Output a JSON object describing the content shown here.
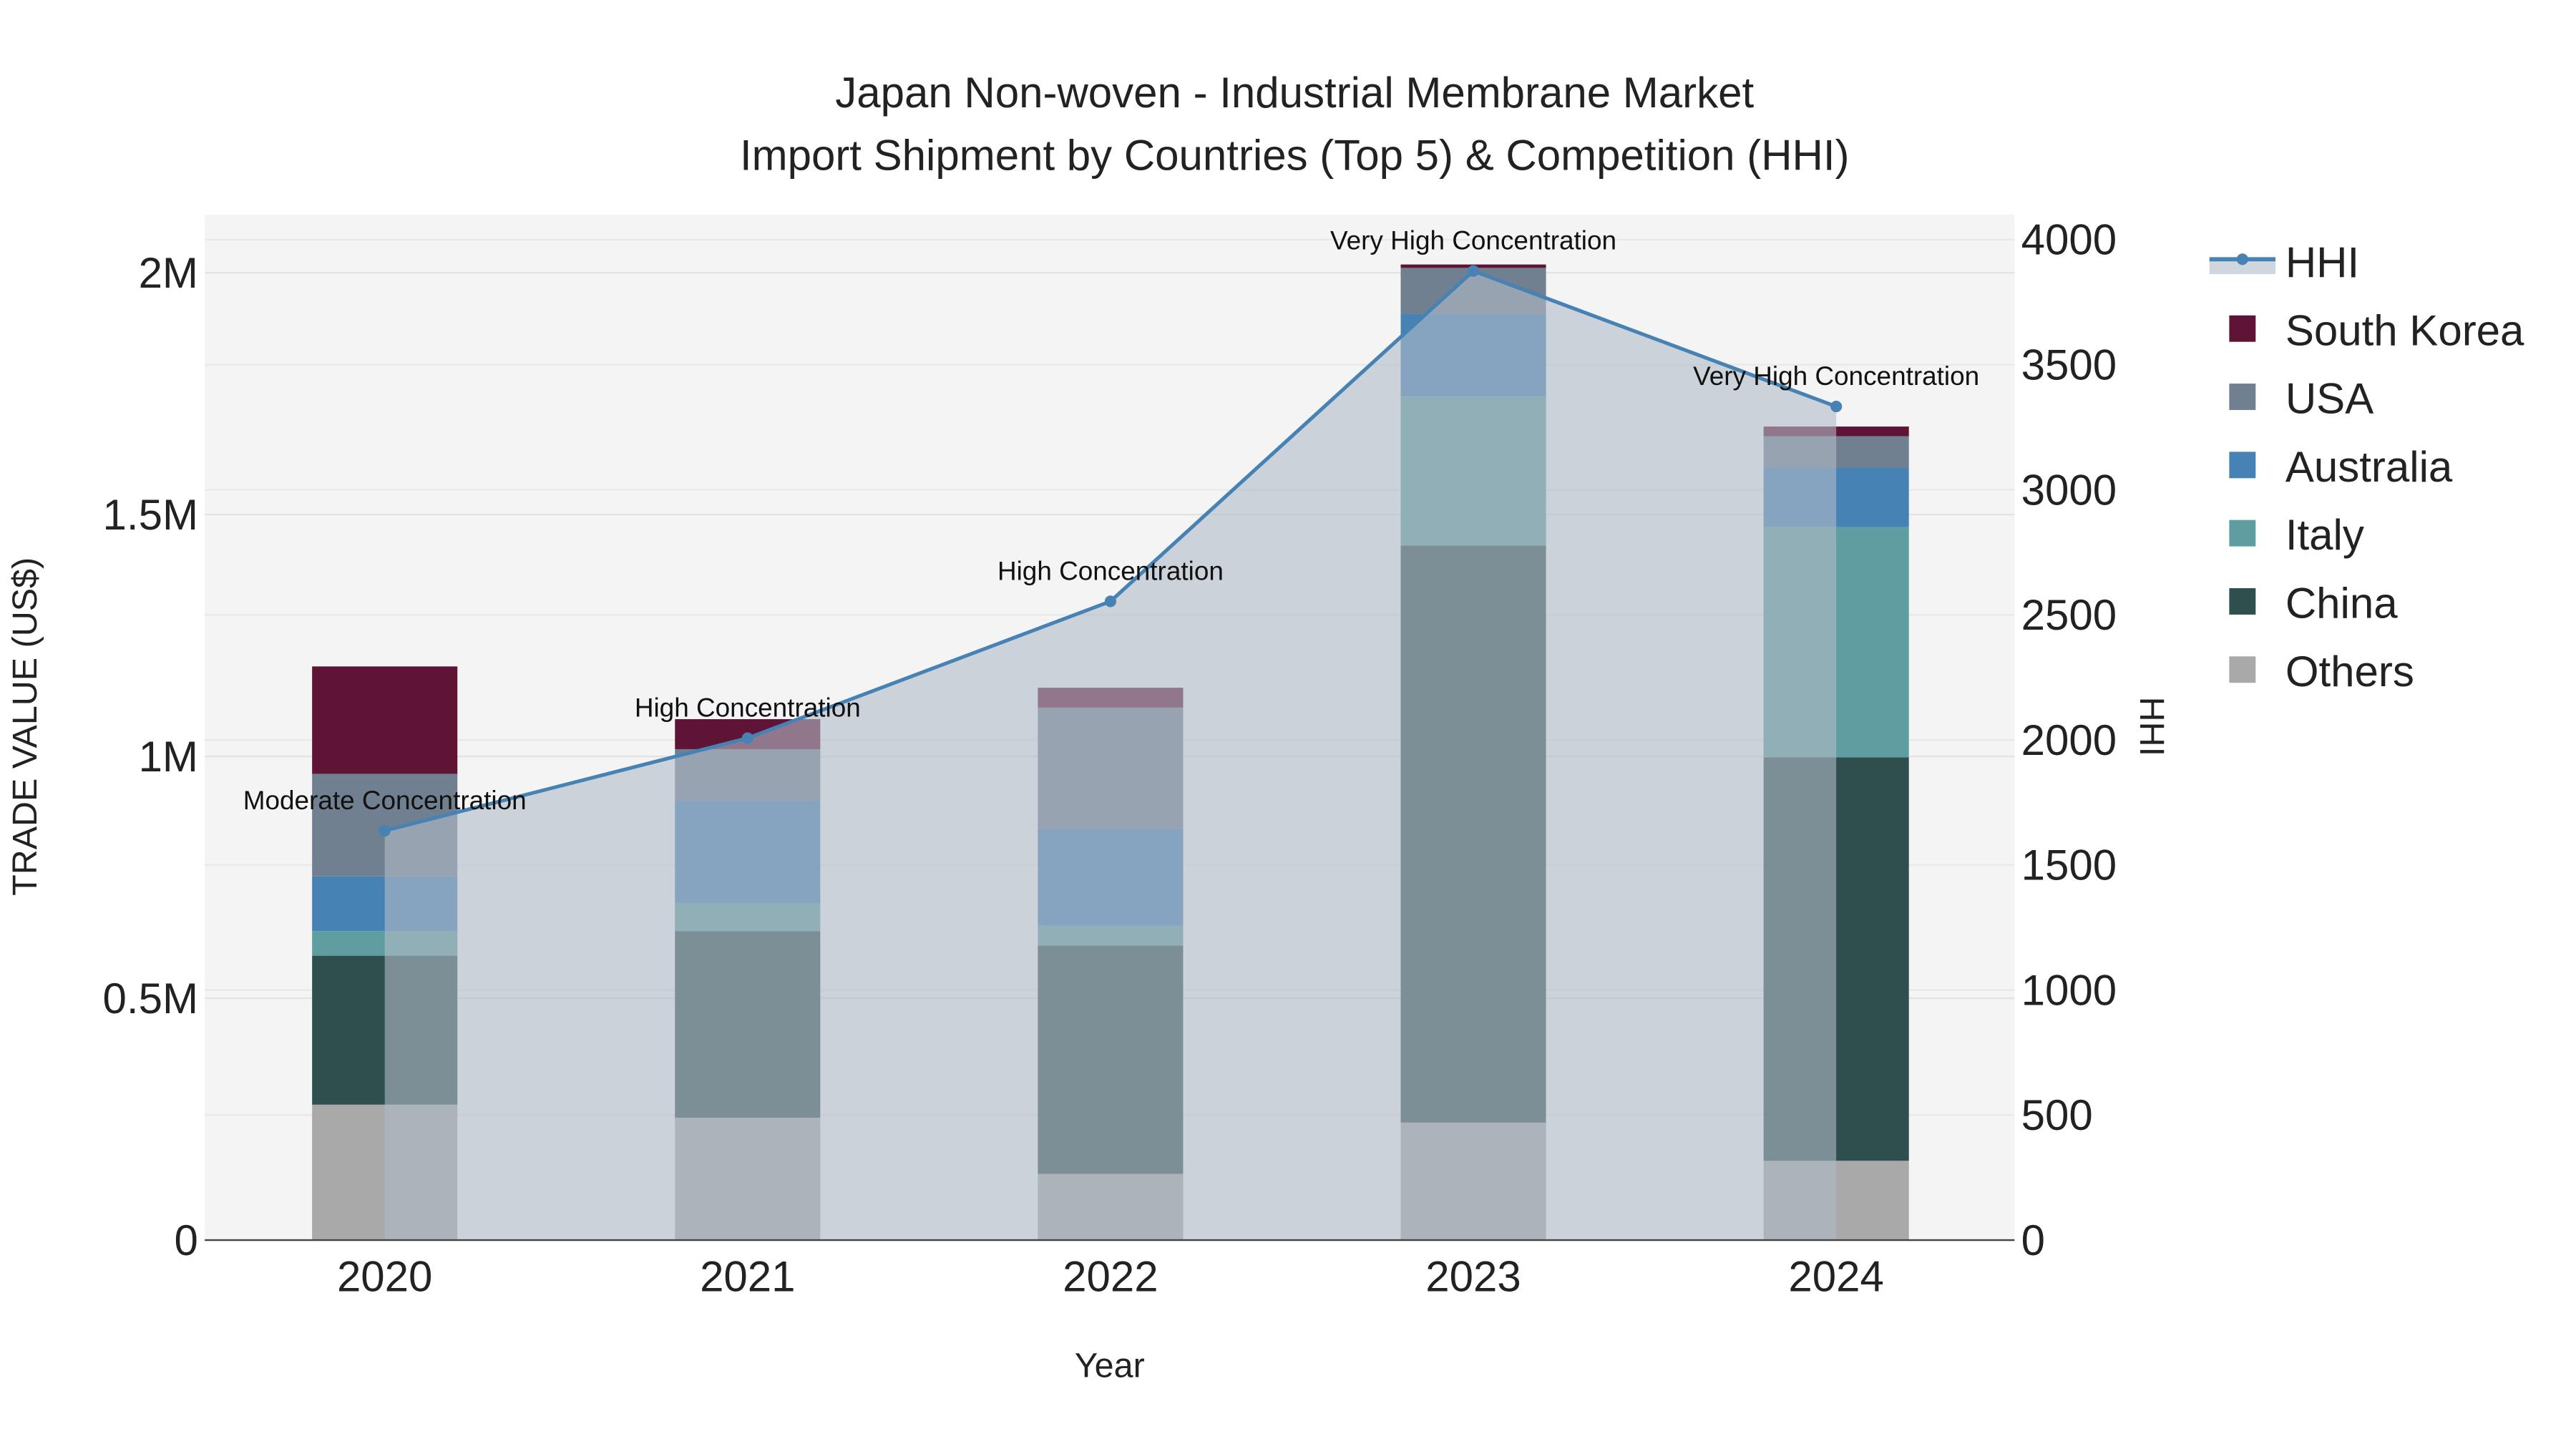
{
  "chart_data": {
    "type": "bar",
    "title_line1": "Japan Non-woven - Industrial Membrane Market",
    "title_line2": "Import Shipment by Countries (Top 5) & Competition (HHI)",
    "xlabel": "Year",
    "ylabel": "TRADE VALUE (US$)",
    "y2label": "HHI",
    "categories": [
      "2020",
      "2021",
      "2022",
      "2023",
      "2024"
    ],
    "ylim": [
      0,
      2120000
    ],
    "y2lim": [
      0,
      4100
    ],
    "yticks": [
      {
        "v": 0,
        "label": "0"
      },
      {
        "v": 500000,
        "label": "0.5M"
      },
      {
        "v": 1000000,
        "label": "1M"
      },
      {
        "v": 1500000,
        "label": "1.5M"
      },
      {
        "v": 2000000,
        "label": "2M"
      }
    ],
    "y2ticks": [
      0,
      500,
      1000,
      1500,
      2000,
      2500,
      3000,
      3500,
      4000
    ],
    "series": [
      {
        "name": "Others",
        "color": "#a9a9a9",
        "values": [
          280000,
          253000,
          137000,
          243000,
          164000
        ]
      },
      {
        "name": "China",
        "color": "#2f4f4f",
        "values": [
          308000,
          386000,
          472000,
          1193000,
          834000
        ]
      },
      {
        "name": "Italy",
        "color": "#5f9ea0",
        "values": [
          51000,
          58000,
          41000,
          308000,
          476000
        ]
      },
      {
        "name": "Australia",
        "color": "#4682b4",
        "values": [
          113000,
          212000,
          201000,
          171000,
          123000
        ]
      },
      {
        "name": "USA",
        "color": "#708090",
        "values": [
          212000,
          106000,
          250000,
          95000,
          65000
        ]
      },
      {
        "name": "South Korea",
        "color": "#5f1335",
        "values": [
          222000,
          62000,
          41000,
          7000,
          20000
        ]
      }
    ],
    "hhi": {
      "name": "HHI",
      "color": "#4682b4",
      "values": [
        1637,
        2007,
        2554,
        3875,
        3333
      ],
      "annotations": [
        "Moderate Concentration",
        "High Concentration",
        "High Concentration",
        "Very High Concentration",
        "Very High Concentration"
      ]
    },
    "legend": [
      "HHI",
      "South Korea",
      "USA",
      "Australia",
      "Italy",
      "China",
      "Others"
    ],
    "legend_placement": "right",
    "grid": true
  }
}
